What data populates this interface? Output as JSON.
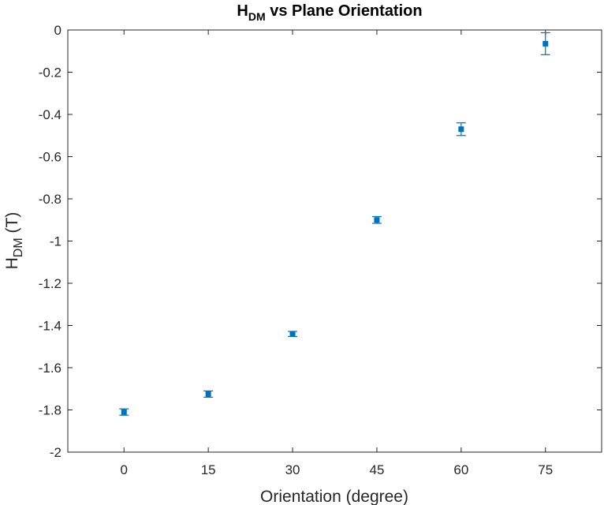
{
  "chart_data": {
    "type": "scatter",
    "title": {
      "main": "H",
      "sub": "DM",
      "rest": " vs Plane Orientation"
    },
    "xlabel": "Orientation (degree)",
    "ylabel": {
      "main": "H",
      "sub": "DM",
      "rest": " (T)"
    },
    "xlim": [
      -10,
      85
    ],
    "ylim": [
      -2,
      0
    ],
    "xticks": [
      "0",
      "15",
      "30",
      "45",
      "60",
      "75"
    ],
    "yticks": [
      "0",
      "-0.2",
      "-0.4",
      "-0.6",
      "-0.8",
      "-1",
      "-1.2",
      "-1.4",
      "-1.6",
      "-1.8",
      "-2"
    ],
    "grid": false,
    "color": "#0072BD",
    "points": [
      {
        "x": 0,
        "y": -1.81,
        "err": 0.015
      },
      {
        "x": 15,
        "y": -1.725,
        "err": 0.015
      },
      {
        "x": 30,
        "y": -1.44,
        "err": 0.012
      },
      {
        "x": 45,
        "y": -0.9,
        "err": 0.016
      },
      {
        "x": 60,
        "y": -0.47,
        "err": 0.03
      },
      {
        "x": 75,
        "y": -0.065,
        "err": 0.052
      }
    ]
  }
}
